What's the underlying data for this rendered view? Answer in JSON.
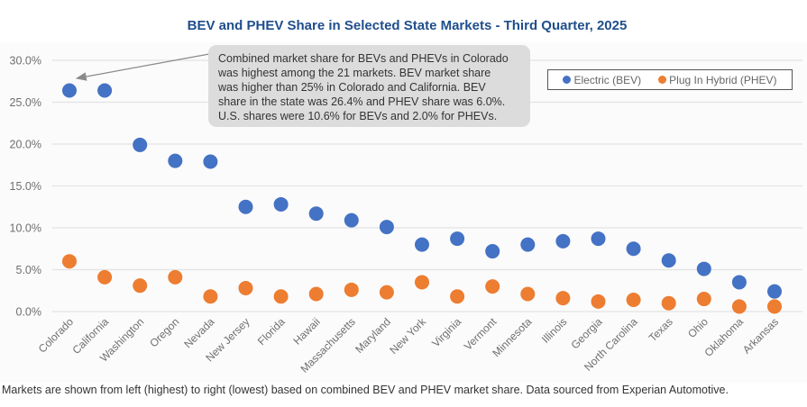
{
  "chart_data": {
    "type": "scatter",
    "title": "BEV and PHEV Share in Selected State Markets - Third Quarter, 2025",
    "xlabel": "",
    "ylabel": "",
    "ylim": [
      0,
      30
    ],
    "yticks": [
      "0.0%",
      "5.0%",
      "10.0%",
      "15.0%",
      "20.0%",
      "25.0%",
      "30.0%"
    ],
    "ytick_values": [
      0,
      5,
      10,
      15,
      20,
      25,
      30
    ],
    "grid": true,
    "legend_position": "top-right",
    "categories": [
      "Colorado",
      "California",
      "Washington",
      "Oregon",
      "Nevada",
      "New Jersey",
      "Florida",
      "Hawaii",
      "Massachusetts",
      "Maryland",
      "New York",
      "Virginia",
      "Vermont",
      "Minnesota",
      "Illinois",
      "Georgia",
      "North Carolina",
      "Texas",
      "Ohio",
      "Oklahoma",
      "Arkansas"
    ],
    "series": [
      {
        "name": "Electric (BEV)",
        "color": "#4472c4",
        "values": [
          26.4,
          26.4,
          19.9,
          18.0,
          17.9,
          12.5,
          12.8,
          11.7,
          10.9,
          10.1,
          8.0,
          8.7,
          7.2,
          8.0,
          8.4,
          8.7,
          7.5,
          6.1,
          5.1,
          3.5,
          2.4
        ]
      },
      {
        "name": "Plug In Hybrid (PHEV)",
        "color": "#ed7d31",
        "values": [
          6.0,
          4.1,
          3.1,
          4.1,
          1.8,
          2.8,
          1.8,
          2.1,
          2.6,
          2.3,
          3.5,
          1.8,
          3.0,
          2.1,
          1.6,
          1.2,
          1.4,
          1.0,
          1.5,
          0.6,
          0.6
        ]
      }
    ],
    "annotation": {
      "lines": [
        "Combined market share for BEVs and PHEVs in Colorado",
        "was highest among the 21 markets. BEV market share",
        "was higher than 25% in Colorado and California. BEV",
        "share in the state was 26.4% and PHEV share was 6.0%.",
        "U.S. shares were 10.6% for BEVs and 2.0% for PHEVs."
      ],
      "points_to": "Colorado"
    }
  },
  "legend": {
    "items": [
      {
        "label": "Electric (BEV)",
        "color": "#4472c4"
      },
      {
        "label": "Plug In Hybrid (PHEV)",
        "color": "#ed7d31"
      }
    ]
  },
  "footnote": "Markets are shown from left (highest) to right (lowest) based on combined BEV and PHEV market share. Data sourced from Experian Automotive.",
  "colors": {
    "title": "#1f4e8c",
    "grid": "#e3e3e3",
    "annotation_bg": "#dcdcdc"
  }
}
